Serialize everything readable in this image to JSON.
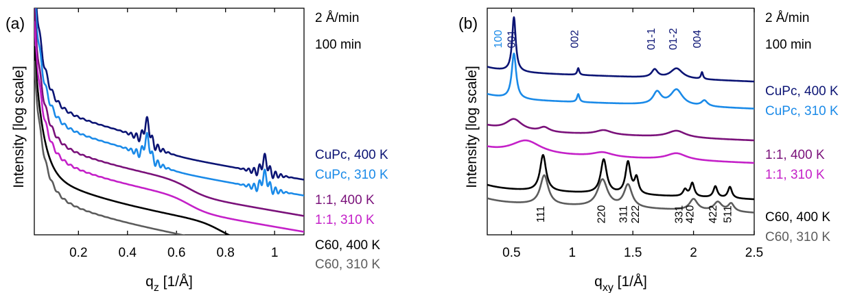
{
  "chart_data": [
    {
      "type": "line",
      "panel_label": "(a)",
      "xlabel": "q",
      "xlabel_sub": "z",
      "xlabel_unit": " [1/Å]",
      "ylabel": "Intensity [log scale]",
      "xlim": [
        0.02,
        1.12
      ],
      "yscale": "log",
      "xticks": [
        0.2,
        0.4,
        0.6,
        0.8,
        1.0
      ],
      "xtick_labels": [
        "0.2",
        "0.4",
        "0.6",
        "0.8",
        "1"
      ],
      "rate": "2 Å/min",
      "time": "100 min",
      "series": [
        {
          "name": "CuPc, 400 K",
          "color": "#0b1474",
          "offset": 0.5,
          "knee": 0.5,
          "bragg": [
            0.48,
            0.96
          ],
          "fringes": 0.025
        },
        {
          "name": "CuPc, 310 K",
          "color": "#1a8ae8",
          "offset": 0.43,
          "knee": 0.5,
          "bragg": [
            0.48,
            0.96
          ],
          "fringes": 0.025
        },
        {
          "name": "1:1, 400 K",
          "color": "#7a117a",
          "offset": 0.34,
          "knee": 0.65,
          "bragg": [],
          "fringes": 0.02
        },
        {
          "name": "1:1, 310 K",
          "color": "#c420c8",
          "offset": 0.27,
          "knee": 0.65,
          "bragg": [],
          "fringes": 0.02
        },
        {
          "name": "C60, 400 K",
          "color": "#000000",
          "offset": 0.18,
          "knee": 0.78,
          "bragg": [],
          "fringes": 0
        },
        {
          "name": "C60, 310 K",
          "color": "#5c5c5c",
          "offset": 0.1,
          "knee": 0.78,
          "bragg": [],
          "fringes": 0.015
        }
      ]
    },
    {
      "type": "line",
      "panel_label": "(b)",
      "xlabel": "q",
      "xlabel_sub": "xy",
      "xlabel_unit": " [1/Å]",
      "ylabel": "Intensity [log scale]",
      "xlim": [
        0.3,
        2.5
      ],
      "yscale": "log",
      "xticks": [
        0.5,
        1.0,
        1.5,
        2.0,
        2.5
      ],
      "xtick_labels": [
        "0.5",
        "1",
        "1.5",
        "2",
        "2.5"
      ],
      "rate": "2 Å/min",
      "time": "100 min",
      "series": [
        {
          "name": "CuPc, 400 K",
          "color": "#0b1474",
          "offset": 0.72,
          "peaks": [
            [
              0.52,
              0.24,
              0.018
            ],
            [
              1.05,
              0.03,
              0.01
            ],
            [
              1.68,
              0.035,
              0.03
            ],
            [
              1.86,
              0.045,
              0.06
            ],
            [
              2.07,
              0.03,
              0.01
            ]
          ]
        },
        {
          "name": "CuPc, 310 K",
          "color": "#1a8ae8",
          "offset": 0.6,
          "peaks": [
            [
              0.52,
              0.2,
              0.022
            ],
            [
              1.05,
              0.035,
              0.012
            ],
            [
              1.7,
              0.055,
              0.04
            ],
            [
              1.86,
              0.07,
              0.06
            ],
            [
              2.09,
              0.025,
              0.03
            ]
          ]
        },
        {
          "name": "1:1, 400 K",
          "color": "#7a117a",
          "offset": 0.46,
          "peaks": [
            [
              0.52,
              0.05,
              0.08
            ],
            [
              0.77,
              0.02,
              0.05
            ],
            [
              1.26,
              0.02,
              0.08
            ],
            [
              1.86,
              0.03,
              0.09
            ]
          ]
        },
        {
          "name": "1:1, 310 K",
          "color": "#c420c8",
          "offset": 0.36,
          "peaks": [
            [
              0.62,
              0.06,
              0.15
            ],
            [
              1.25,
              0.02,
              0.1
            ],
            [
              1.86,
              0.03,
              0.1
            ]
          ]
        },
        {
          "name": "C60, 400 K",
          "color": "#000000",
          "offset": 0.2,
          "peaks": [
            [
              0.76,
              0.16,
              0.03
            ],
            [
              1.26,
              0.15,
              0.03
            ],
            [
              1.46,
              0.14,
              0.025
            ],
            [
              1.53,
              0.07,
              0.02
            ],
            [
              1.93,
              0.03,
              0.02
            ],
            [
              1.99,
              0.06,
              0.02
            ],
            [
              2.18,
              0.05,
              0.02
            ],
            [
              2.3,
              0.05,
              0.02
            ]
          ]
        },
        {
          "name": "C60, 310 K",
          "color": "#5c5c5c",
          "offset": 0.14,
          "peaks": [
            [
              0.77,
              0.13,
              0.04
            ],
            [
              1.25,
              0.12,
              0.05
            ],
            [
              1.46,
              0.1,
              0.04
            ],
            [
              2.0,
              0.05,
              0.04
            ],
            [
              2.2,
              0.04,
              0.04
            ],
            [
              2.31,
              0.035,
              0.03
            ]
          ]
        }
      ],
      "peak_labels_top": [
        {
          "text": "100",
          "x": 0.42,
          "color": "#1a8ae8"
        },
        {
          "text": "001",
          "x": 0.53,
          "color": "#0b1474"
        },
        {
          "text": "002",
          "x": 1.05,
          "color": "#0b1474"
        },
        {
          "text": "01-1",
          "x": 1.68,
          "color": "#0b1474"
        },
        {
          "text": "01-2",
          "x": 1.86,
          "color": "#0b1474"
        },
        {
          "text": "004",
          "x": 2.06,
          "color": "#0b1474"
        }
      ],
      "peak_labels_bottom": [
        {
          "text": "111",
          "x": 0.77
        },
        {
          "text": "220",
          "x": 1.27
        },
        {
          "text": "311",
          "x": 1.45
        },
        {
          "text": "222",
          "x": 1.55
        },
        {
          "text": "331",
          "x": 1.91
        },
        {
          "text": "420",
          "x": 2.0
        },
        {
          "text": "422",
          "x": 2.19
        },
        {
          "text": "511",
          "x": 2.31
        }
      ]
    }
  ]
}
